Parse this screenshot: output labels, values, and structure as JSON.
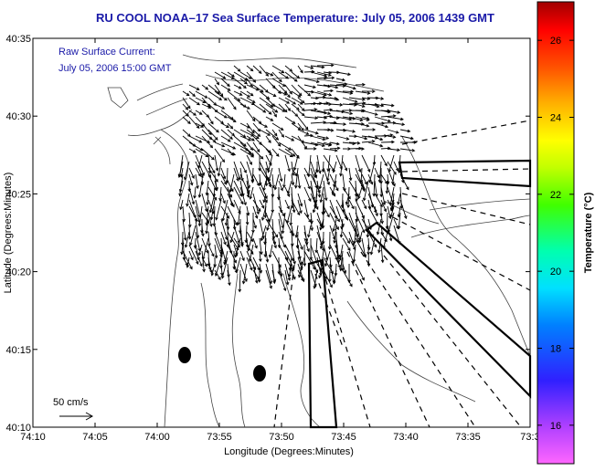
{
  "chart_data": {
    "type": "vector-field",
    "title": "RU COOL  NOAA–17  Sea Surface Temperature:  July 05, 2006 1439 GMT",
    "annotation_lines": [
      "Raw Surface Current:",
      "July 05, 2006 15:00 GMT"
    ],
    "scale_label": "50 cm/s",
    "xlabel": "Longitude (Degrees:Minutes)",
    "ylabel": "Latitude (Degrees:Minutes)",
    "x_ticks": [
      "74:10",
      "74:05",
      "74:00",
      "73:55",
      "73:50",
      "73:45",
      "73:40",
      "73:35",
      "73:3"
    ],
    "y_ticks": [
      "40:35",
      "40:30",
      "40:25",
      "40:20",
      "40:15",
      "40:10"
    ],
    "xlim_minutes_west": [
      10,
      27
    ],
    "ylim_minutes": [
      10,
      35
    ],
    "colorbar": {
      "label": "Temperature (°C)",
      "ticks": [
        "26",
        "24",
        "22",
        "20",
        "18",
        "16"
      ],
      "range": [
        15,
        27
      ]
    },
    "markers": [
      {
        "lon": "73:59",
        "lat": "40:14.6"
      },
      {
        "lon": "73:52.8",
        "lat": "40:13.5"
      }
    ]
  }
}
